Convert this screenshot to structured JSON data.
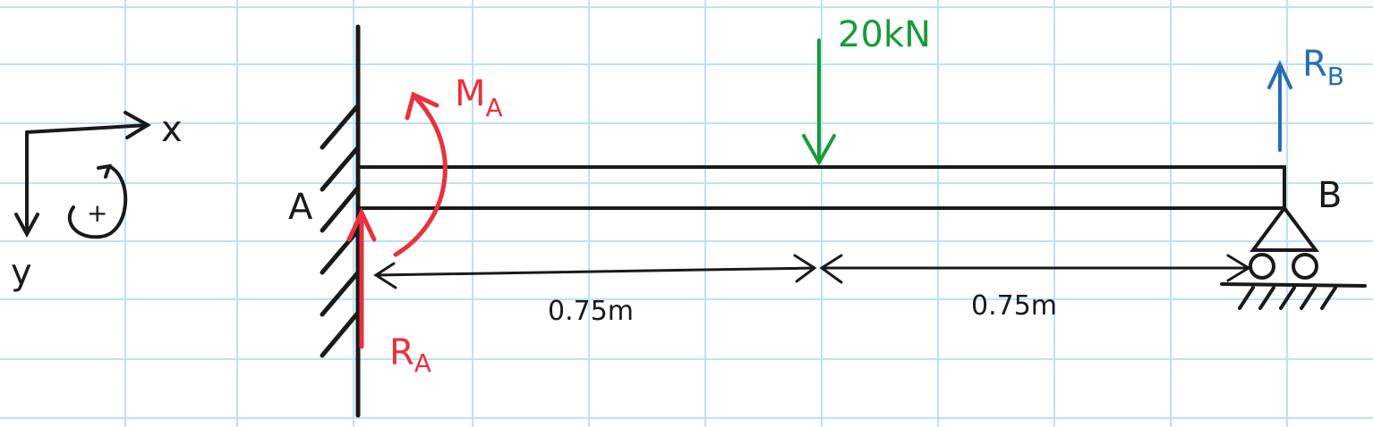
{
  "axes": {
    "x_label": "x",
    "y_label": "y",
    "sign_label": "+"
  },
  "supports": {
    "fixed_end_label": "A",
    "roller_end_label": "B"
  },
  "loads": {
    "point_load_label": "20kN"
  },
  "reactions": {
    "moment_main": "M",
    "moment_sub": "A",
    "ra_main": "R",
    "ra_sub": "A",
    "rb_main": "R",
    "rb_sub": "B"
  },
  "dimensions": {
    "left_span": "0.75m",
    "right_span": "0.75m"
  },
  "colors": {
    "grid": "#bfe0f5",
    "ink": "#1a1a1a",
    "red": "#e8323f",
    "green": "#1a9a3a",
    "blue": "#2a6db5"
  }
}
